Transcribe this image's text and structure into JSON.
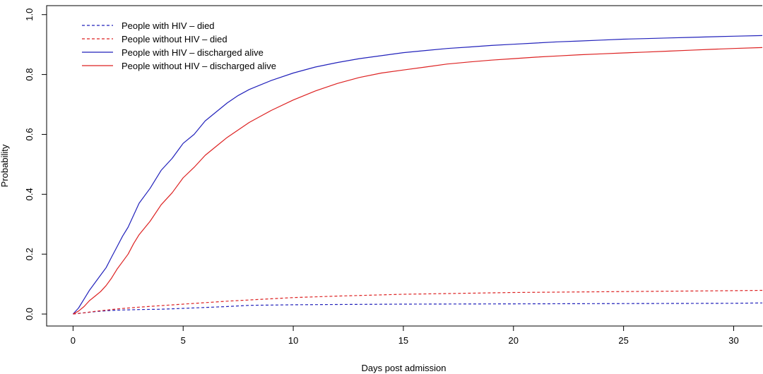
{
  "chart_data": {
    "type": "line",
    "title": "",
    "xlabel": "Days post admission",
    "ylabel": "Probability",
    "xlim": [
      -1.2,
      31.3
    ],
    "ylim": [
      -0.04,
      1.03
    ],
    "xticks": [
      0,
      5,
      10,
      15,
      20,
      25,
      30
    ],
    "yticks": [
      0.0,
      0.2,
      0.4,
      0.6,
      0.8,
      1.0
    ],
    "xtick_labels": [
      "0",
      "5",
      "10",
      "15",
      "20",
      "25",
      "30"
    ],
    "ytick_labels": [
      "0.0",
      "0.2",
      "0.4",
      "0.6",
      "0.8",
      "1.0"
    ],
    "grid": false,
    "legend_position": "top-left",
    "series": [
      {
        "name": "People with HIV – died",
        "color": "#2222bb",
        "dash": "dashed",
        "x": [
          0,
          0.5,
          1,
          1.5,
          2,
          2.5,
          3,
          4,
          5,
          6,
          7,
          8,
          9,
          10,
          12,
          15,
          20,
          25,
          30,
          31.3
        ],
        "y": [
          0,
          0.004,
          0.008,
          0.011,
          0.013,
          0.014,
          0.015,
          0.016,
          0.019,
          0.022,
          0.025,
          0.029,
          0.03,
          0.031,
          0.032,
          0.033,
          0.034,
          0.035,
          0.036,
          0.037
        ]
      },
      {
        "name": "People without HIV – died",
        "color": "#dd2222",
        "dash": "dashed",
        "x": [
          0,
          0.5,
          1,
          1.5,
          2,
          2.5,
          3,
          4,
          5,
          6,
          7,
          8,
          9,
          10,
          12,
          15,
          20,
          25,
          30,
          31.3
        ],
        "y": [
          0,
          0.004,
          0.009,
          0.013,
          0.017,
          0.02,
          0.023,
          0.028,
          0.033,
          0.038,
          0.043,
          0.047,
          0.051,
          0.055,
          0.06,
          0.066,
          0.072,
          0.075,
          0.078,
          0.079
        ]
      },
      {
        "name": "People with HIV – discharged alive",
        "color": "#2222bb",
        "dash": "solid",
        "x": [
          0,
          0.25,
          0.5,
          0.75,
          1,
          1.25,
          1.5,
          1.75,
          2,
          2.25,
          2.5,
          2.75,
          3,
          3.5,
          4,
          4.5,
          5,
          5.5,
          6,
          6.5,
          7,
          7.5,
          8,
          8.5,
          9,
          10,
          11,
          12,
          13,
          14,
          15,
          16,
          17,
          18,
          19,
          20,
          21,
          22,
          23,
          24,
          25,
          26,
          27,
          28,
          29,
          30,
          31.3
        ],
        "y": [
          0,
          0.02,
          0.05,
          0.08,
          0.105,
          0.13,
          0.155,
          0.19,
          0.225,
          0.26,
          0.29,
          0.33,
          0.37,
          0.42,
          0.48,
          0.52,
          0.57,
          0.6,
          0.645,
          0.675,
          0.705,
          0.73,
          0.75,
          0.765,
          0.78,
          0.805,
          0.825,
          0.84,
          0.853,
          0.863,
          0.873,
          0.88,
          0.887,
          0.892,
          0.897,
          0.901,
          0.905,
          0.909,
          0.912,
          0.915,
          0.918,
          0.92,
          0.922,
          0.924,
          0.926,
          0.928,
          0.93
        ]
      },
      {
        "name": "People without HIV – discharged alive",
        "color": "#dd2222",
        "dash": "solid",
        "x": [
          0,
          0.25,
          0.5,
          0.75,
          1,
          1.25,
          1.5,
          1.75,
          2,
          2.25,
          2.5,
          2.75,
          3,
          3.5,
          4,
          4.5,
          5,
          5.5,
          6,
          6.5,
          7,
          7.5,
          8,
          8.5,
          9,
          10,
          11,
          12,
          13,
          14,
          15,
          16,
          17,
          18,
          19,
          20,
          21,
          22,
          23,
          24,
          25,
          26,
          27,
          28,
          29,
          30,
          31.3
        ],
        "y": [
          0,
          0.01,
          0.025,
          0.045,
          0.06,
          0.075,
          0.095,
          0.12,
          0.15,
          0.175,
          0.2,
          0.235,
          0.265,
          0.31,
          0.365,
          0.405,
          0.455,
          0.49,
          0.53,
          0.56,
          0.59,
          0.615,
          0.64,
          0.66,
          0.68,
          0.715,
          0.745,
          0.77,
          0.79,
          0.805,
          0.815,
          0.825,
          0.835,
          0.842,
          0.848,
          0.853,
          0.858,
          0.862,
          0.866,
          0.869,
          0.872,
          0.875,
          0.878,
          0.881,
          0.884,
          0.887,
          0.89
        ]
      }
    ]
  }
}
